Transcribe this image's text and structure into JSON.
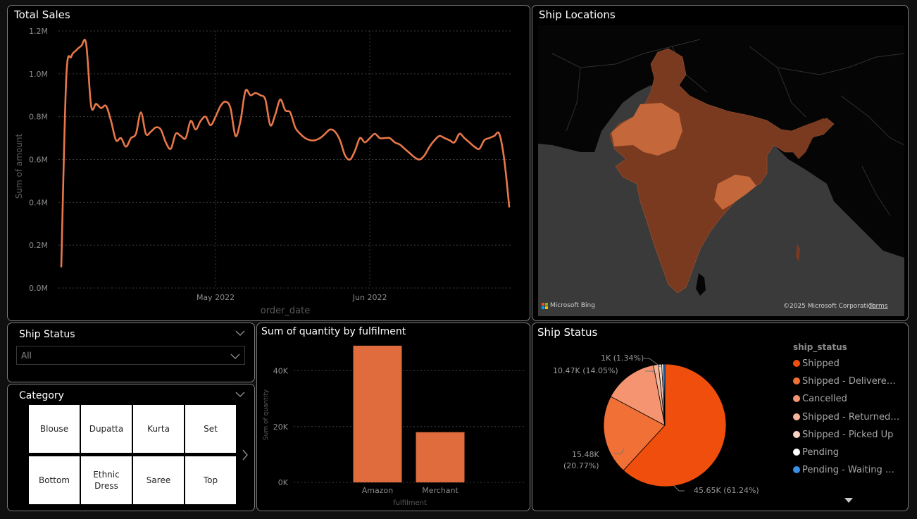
{
  "total_sales": {
    "title": "Total Sales",
    "xlabel": "order_date",
    "ylabel": "Sum of amount",
    "x_ticks": [
      "May 2022",
      "Jun 2022"
    ],
    "y_ticks": [
      "0.0M",
      "0.2M",
      "0.4M",
      "0.6M",
      "0.8M",
      "1.0M",
      "1.2M"
    ],
    "line_color": "#e8774a"
  },
  "ship_locations": {
    "title": "Ship Locations",
    "bing_label": "Microsoft Bing",
    "copyright": "©2025 Microsoft Corporation",
    "terms": "Terms",
    "land_color": "#7a3a20",
    "highlight_color": "#c4673a",
    "background_color": "#3a3a3a"
  },
  "ship_status_filter": {
    "title": "Ship Status",
    "selected": "All"
  },
  "category_filter": {
    "title": "Category",
    "tiles": [
      "Blouse",
      "Dupatta",
      "Kurta",
      "Set",
      "Bottom",
      "Ethnic Dress",
      "Saree",
      "Top"
    ]
  },
  "fulfilment_chart": {
    "title": "Sum of quantity by fulfilment",
    "xlabel": "fulfilment",
    "ylabel": "Sum of quantity",
    "y_ticks": [
      "0K",
      "20K",
      "40K"
    ],
    "bar_color": "#e06c3d"
  },
  "ship_status_pie": {
    "title": "Ship Status",
    "legend_title": "ship_status",
    "legend": [
      {
        "label": "Shipped",
        "color": "#f04e0c"
      },
      {
        "label": "Shipped - Delivered to Buyer",
        "color": "#f07035"
      },
      {
        "label": "Cancelled",
        "color": "#f49470"
      },
      {
        "label": "Shipped - Returned to Seller",
        "color": "#f7b49a"
      },
      {
        "label": "Shipped - Picked Up",
        "color": "#fad5c4"
      },
      {
        "label": "Pending",
        "color": "#ffffff"
      },
      {
        "label": "Pending - Waiting for Pick Up",
        "color": "#3a8fe8"
      }
    ],
    "labels": {
      "shipped": "45.65K (61.24%)",
      "delivered_1": "15.48K",
      "delivered_2": "(20.77%)",
      "cancelled": "10.47K (14.05%)",
      "small": "1K (1.34%)"
    }
  },
  "chart_data": [
    {
      "type": "line",
      "title": "Total Sales",
      "xlabel": "order_date",
      "ylabel": "Sum of amount",
      "ylim": [
        0,
        1200000
      ],
      "x": [
        "2022-03-31",
        "2022-04-01",
        "2022-04-02",
        "2022-04-03",
        "2022-04-04",
        "2022-04-05",
        "2022-04-06",
        "2022-04-07",
        "2022-04-08",
        "2022-04-09",
        "2022-04-10",
        "2022-04-11",
        "2022-04-12",
        "2022-04-13",
        "2022-04-14",
        "2022-04-15",
        "2022-04-16",
        "2022-04-17",
        "2022-04-18",
        "2022-04-19",
        "2022-04-20",
        "2022-04-21",
        "2022-04-22",
        "2022-04-23",
        "2022-04-24",
        "2022-04-25",
        "2022-04-26",
        "2022-04-27",
        "2022-04-28",
        "2022-04-29",
        "2022-04-30",
        "2022-05-01",
        "2022-05-02",
        "2022-05-03",
        "2022-05-04",
        "2022-05-05",
        "2022-05-06",
        "2022-05-07",
        "2022-05-08",
        "2022-05-09",
        "2022-05-10",
        "2022-05-11",
        "2022-05-12",
        "2022-05-13",
        "2022-05-14",
        "2022-05-15",
        "2022-05-16",
        "2022-05-17",
        "2022-05-18",
        "2022-05-19",
        "2022-05-20",
        "2022-05-21",
        "2022-05-22",
        "2022-05-23",
        "2022-05-24",
        "2022-05-25",
        "2022-05-26",
        "2022-05-27",
        "2022-05-28",
        "2022-05-29",
        "2022-05-30",
        "2022-05-31",
        "2022-06-01",
        "2022-06-02",
        "2022-06-03",
        "2022-06-04",
        "2022-06-05",
        "2022-06-06",
        "2022-06-07",
        "2022-06-08",
        "2022-06-09",
        "2022-06-10",
        "2022-06-11",
        "2022-06-12",
        "2022-06-13",
        "2022-06-14",
        "2022-06-15",
        "2022-06-16",
        "2022-06-17",
        "2022-06-18",
        "2022-06-19",
        "2022-06-20",
        "2022-06-21",
        "2022-06-22",
        "2022-06-23",
        "2022-06-24",
        "2022-06-25",
        "2022-06-26",
        "2022-06-27",
        "2022-06-28",
        "2022-06-29"
      ],
      "values": [
        100000,
        980000,
        1080000,
        1110000,
        1130000,
        1140000,
        850000,
        860000,
        840000,
        850000,
        780000,
        690000,
        700000,
        660000,
        700000,
        720000,
        820000,
        720000,
        730000,
        750000,
        740000,
        680000,
        650000,
        720000,
        710000,
        700000,
        780000,
        740000,
        780000,
        800000,
        760000,
        800000,
        850000,
        870000,
        840000,
        710000,
        780000,
        920000,
        900000,
        910000,
        900000,
        880000,
        760000,
        810000,
        880000,
        830000,
        820000,
        750000,
        720000,
        700000,
        690000,
        690000,
        700000,
        720000,
        740000,
        730000,
        690000,
        620000,
        600000,
        640000,
        700000,
        680000,
        700000,
        720000,
        700000,
        700000,
        700000,
        680000,
        670000,
        650000,
        630000,
        610000,
        600000,
        620000,
        660000,
        690000,
        710000,
        700000,
        690000,
        680000,
        720000,
        700000,
        680000,
        660000,
        650000,
        690000,
        700000,
        710000,
        720000,
        600000,
        380000
      ]
    },
    {
      "type": "bar",
      "title": "Sum of quantity by fulfilment",
      "xlabel": "fulfilment",
      "ylabel": "Sum of quantity",
      "categories": [
        "Amazon",
        "Merchant"
      ],
      "values": [
        49000,
        18000
      ],
      "ylim": [
        0,
        52000
      ]
    },
    {
      "type": "pie",
      "title": "Ship Status",
      "categories": [
        "Shipped",
        "Shipped - Delivered to Buyer",
        "Cancelled",
        "Shipped - Returned to Seller",
        "Shipped - Picked Up",
        "Pending",
        "Pending - Waiting for Pick Up"
      ],
      "values": [
        45650,
        15480,
        10470,
        1000,
        630,
        350,
        250
      ],
      "percentages": [
        61.24,
        20.77,
        14.05,
        1.34,
        0.85,
        0.47,
        0.34
      ]
    }
  ]
}
